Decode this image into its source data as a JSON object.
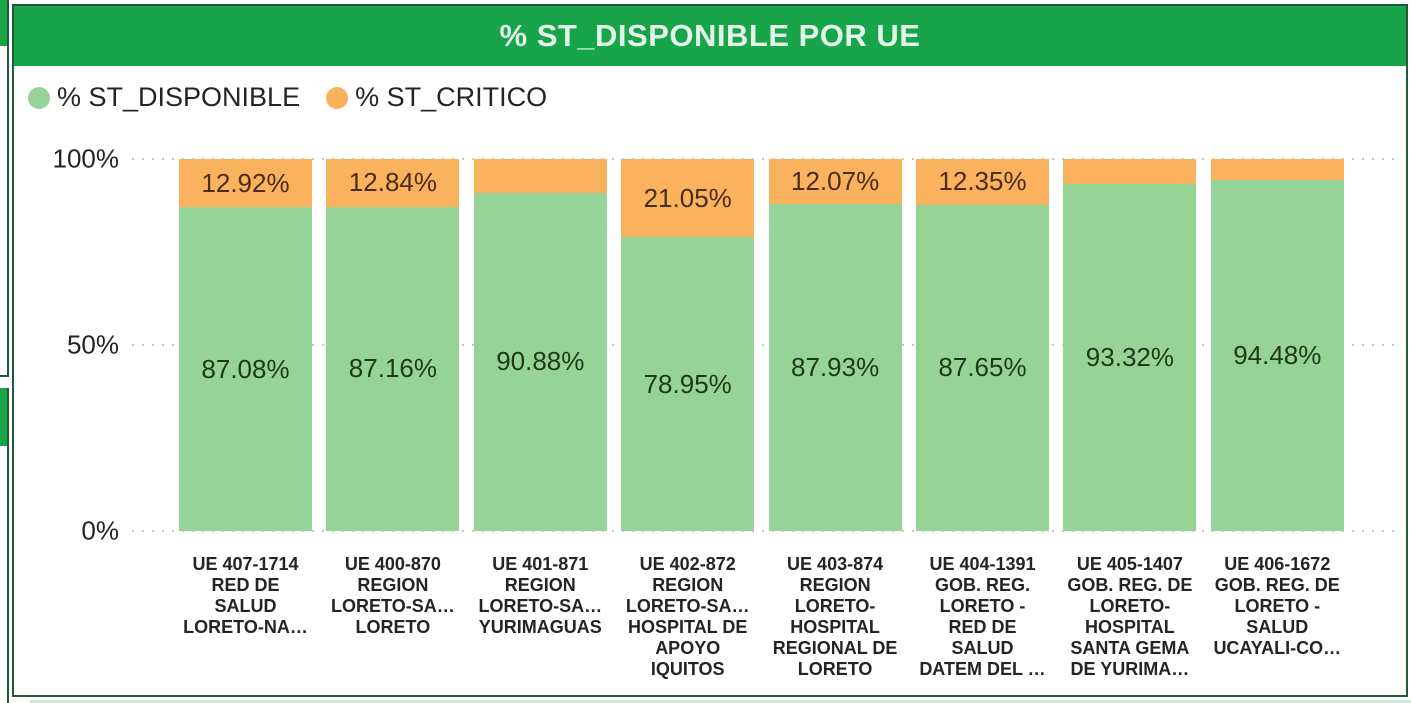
{
  "header": {
    "title": "% ST_DISPONIBLE POR UE"
  },
  "legend": {
    "items": [
      {
        "label": "% ST_DISPONIBLE",
        "color": "#96d396"
      },
      {
        "label": "% ST_CRITICO",
        "color": "#fab25f"
      }
    ]
  },
  "colors": {
    "header_green": "#18a54a",
    "card_border": "#1e5c38",
    "disponible_fill": "#96d396",
    "critico_fill": "#fab25f",
    "disponible_label_text": "#1c3a1a",
    "critico_label_text": "#4a2c17",
    "axis_text": "#252423",
    "gridline": "#c8c8c8",
    "title_text": "#e2f5e9"
  },
  "chart_data": {
    "type": "bar",
    "stacked": true,
    "title": "% ST_DISPONIBLE POR UE",
    "xlabel": "",
    "ylabel": "",
    "ylim": [
      0,
      100
    ],
    "grid": "horizontal-dotted",
    "legend_position": "top-left",
    "y_ticks": [
      {
        "label": "100%",
        "value": 100
      },
      {
        "label": "50%",
        "value": 50
      },
      {
        "label": "0%",
        "value": 0
      }
    ],
    "categories": [
      [
        "UE 407-1714",
        "RED DE",
        "SALUD",
        "LORETO-NA…"
      ],
      [
        "UE 400-870",
        "REGION",
        "LORETO-SA…",
        "LORETO"
      ],
      [
        "UE 401-871",
        "REGION",
        "LORETO-SA…",
        "YURIMAGUAS"
      ],
      [
        "UE 402-872",
        "REGION",
        "LORETO-SA…",
        "HOSPITAL DE",
        "APOYO",
        "IQUITOS"
      ],
      [
        "UE 403-874",
        "REGION",
        "LORETO-",
        "HOSPITAL",
        "REGIONAL DE",
        "LORETO"
      ],
      [
        "UE 404-1391",
        "GOB. REG.",
        "LORETO -",
        "RED DE",
        "SALUD",
        "DATEM DEL …"
      ],
      [
        "UE 405-1407",
        "GOB. REG. DE",
        "LORETO-",
        "HOSPITAL",
        "SANTA GEMA",
        "DE YURIMA…"
      ],
      [
        "UE 406-1672",
        "GOB. REG. DE",
        "LORETO -",
        "SALUD",
        "UCAYALI-CO…"
      ]
    ],
    "series": [
      {
        "name": "% ST_DISPONIBLE",
        "color": "#96d396",
        "label_color": "#1c3a1a",
        "values": [
          87.08,
          87.16,
          90.88,
          78.95,
          87.93,
          87.65,
          93.32,
          94.48
        ],
        "labels": [
          "87.08%",
          "87.16%",
          "90.88%",
          "78.95%",
          "87.93%",
          "87.65%",
          "93.32%",
          "94.48%"
        ]
      },
      {
        "name": "% ST_CRITICO",
        "color": "#fab25f",
        "label_color": "#4a2c17",
        "values": [
          12.92,
          12.84,
          9.12,
          21.05,
          12.07,
          12.35,
          6.68,
          5.52
        ],
        "labels": [
          "12.92%",
          "12.84%",
          null,
          "21.05%",
          "12.07%",
          "12.35%",
          null,
          null
        ]
      }
    ]
  }
}
